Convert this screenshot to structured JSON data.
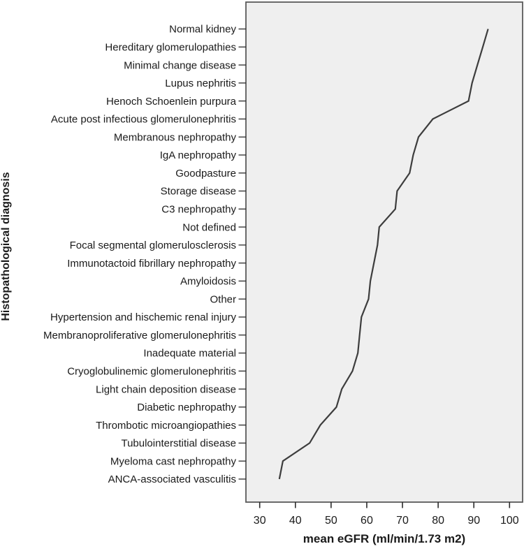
{
  "chart_data": {
    "type": "line",
    "title": "",
    "xlabel": "mean eGFR (ml/min/1.73 m2)",
    "ylabel": "Histopathological diagnosis",
    "legend": "none",
    "grid": false,
    "x_axis": {
      "ticks": [
        30,
        40,
        50,
        60,
        70,
        80,
        90,
        100
      ],
      "range": [
        26,
        104
      ]
    },
    "categories": [
      "Normal kidney",
      "Hereditary glomerulopathies",
      "Minimal change disease",
      "Lupus nephritis",
      "Henoch Schoenlein purpura",
      "Acute post infectious glomerulonephritis",
      "Membranous nephropathy",
      "IgA nephropathy",
      "Goodpasture",
      "Storage disease",
      "C3 nephropathy",
      "Not defined",
      "Focal segmental glomerulosclerosis",
      "Immunotactoid fibrillary nephropathy",
      "Amyloidosis",
      "Other",
      "Hypertension and hischemic renal injury",
      "Membranoproliferative glomerulonephritis",
      "Inadequate material",
      "Cryoglobulinemic glomerulonephritis",
      "Light chain deposition disease",
      "Diabetic nephropathy",
      "Thrombotic microangiopathies",
      "Tubulointerstitial disease",
      "Myeloma cast nephropathy",
      "ANCA-associated vasculitis"
    ],
    "values": [
      94,
      92.5,
      91,
      89.5,
      88.5,
      78.5,
      74.5,
      73,
      72,
      68.5,
      68,
      63.5,
      63,
      62,
      61,
      60.5,
      58.5,
      58,
      57.5,
      56,
      53,
      51.5,
      47,
      44,
      36.5,
      35.5
    ]
  },
  "colors": {
    "page_background": "#ffffff",
    "plot_background": "#efefef",
    "frame_border": "#5a5a5a",
    "line": "#3d3d3d",
    "tick": "#2b2b2b",
    "text": "#1a1a1a"
  }
}
